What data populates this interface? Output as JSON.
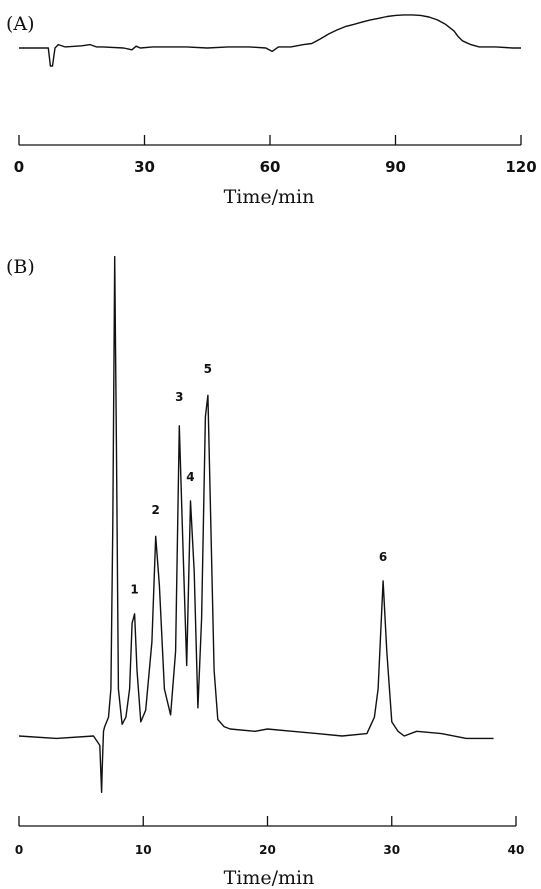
{
  "chart_data": [
    {
      "type": "line",
      "panel_label": "(A)",
      "xlabel": "Time/min",
      "ylabel": "",
      "xlim": [
        0,
        120
      ],
      "xticks": [
        0,
        30,
        60,
        90,
        120
      ],
      "grid": false,
      "y_unit": "relative detector response (0 = baseline)",
      "series": [
        {
          "x": [
            0,
            5,
            7,
            7.5,
            8,
            8.6,
            9.4,
            11,
            15,
            17,
            18.5,
            20,
            25,
            27,
            28,
            29,
            32,
            40,
            45,
            50,
            55,
            59,
            60.5,
            62,
            65,
            68,
            70,
            72,
            74,
            76,
            78,
            80,
            82,
            84,
            86,
            88,
            90,
            92,
            94,
            96,
            98,
            100,
            102,
            104,
            105,
            106,
            108,
            110,
            114,
            118,
            120
          ],
          "y": [
            0,
            0,
            0,
            -0.8,
            -0.8,
            0,
            0.15,
            0.05,
            0.1,
            0.15,
            0.05,
            0.05,
            0,
            -0.08,
            0.08,
            0,
            0.05,
            0.05,
            0,
            0.05,
            0.05,
            0,
            -0.15,
            0.05,
            0.05,
            0.15,
            0.2,
            0.4,
            0.62,
            0.8,
            0.95,
            1.05,
            1.15,
            1.25,
            1.32,
            1.4,
            1.45,
            1.47,
            1.47,
            1.45,
            1.38,
            1.25,
            1.05,
            0.75,
            0.5,
            0.32,
            0.15,
            0.05,
            0.05,
            0,
            0
          ]
        }
      ]
    },
    {
      "type": "line",
      "panel_label": "(B)",
      "xlabel": "Time/min",
      "ylabel": "",
      "xlim": [
        0,
        40
      ],
      "xticks": [
        0,
        10,
        20,
        30,
        40
      ],
      "grid": false,
      "y_unit": "relative detector response (0 = baseline)",
      "peak_labels": [
        {
          "label": "1",
          "x": 9.3,
          "y": 2.9
        },
        {
          "label": "2",
          "x": 11.0,
          "y": 4.6
        },
        {
          "label": "3",
          "x": 12.9,
          "y": 7.0
        },
        {
          "label": "4",
          "x": 13.8,
          "y": 5.3
        },
        {
          "label": "5",
          "x": 15.2,
          "y": 7.6
        },
        {
          "label": "6",
          "x": 29.3,
          "y": 3.6
        }
      ],
      "series": [
        {
          "x": [
            0,
            3,
            6,
            6.5,
            6.65,
            6.7,
            6.8,
            6.9,
            7.2,
            7.4,
            7.55,
            7.7,
            7.85,
            8.0,
            8.3,
            8.6,
            8.9,
            9.1,
            9.3,
            9.5,
            9.8,
            10.2,
            10.7,
            11.0,
            11.3,
            11.7,
            12.2,
            12.6,
            12.9,
            13.2,
            13.5,
            13.8,
            14.1,
            14.4,
            14.7,
            15.0,
            15.2,
            15.4,
            15.7,
            16.0,
            16.5,
            17,
            19,
            20,
            22,
            24,
            26,
            28,
            28.6,
            28.9,
            29.3,
            29.6,
            30.0,
            30.5,
            31,
            32,
            34,
            36,
            38.2
          ],
          "y": [
            0,
            -0.05,
            0,
            -0.2,
            -1.2,
            -0.7,
            0.1,
            0.2,
            0.4,
            1.0,
            4.5,
            10.2,
            6.0,
            1.0,
            0.25,
            0.4,
            1.0,
            2.4,
            2.6,
            1.4,
            0.3,
            0.55,
            2.0,
            4.25,
            3.2,
            1.0,
            0.45,
            1.8,
            6.6,
            4.0,
            1.5,
            5.0,
            3.5,
            0.6,
            2.5,
            6.8,
            7.25,
            5.0,
            1.4,
            0.35,
            0.2,
            0.15,
            0.1,
            0.15,
            0.1,
            0.05,
            0.0,
            0.05,
            0.4,
            1.0,
            3.3,
            1.8,
            0.3,
            0.1,
            0.0,
            0.1,
            0.05,
            -0.05,
            -0.05
          ]
        }
      ]
    }
  ]
}
